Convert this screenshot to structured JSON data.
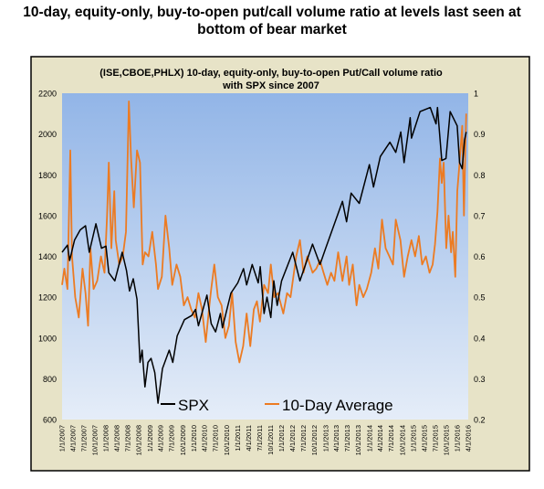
{
  "headline": "10-day, equity-only, buy-to-open put/call volume ratio at levels last seen at bottom of bear market",
  "colors": {
    "outer_panel": "#e7e3c7",
    "spx_line": "#000000",
    "ratio_line": "#ec7b22",
    "plot_top": "#92b5e7",
    "plot_bottom": "#e5edf8"
  },
  "chart_data": {
    "type": "line",
    "title_line1": "(ISE,CBOE,PHLX) 10-day, equity-only, buy-to-open Put/Call volume ratio",
    "title_line2": "with SPX since 2007",
    "x_ticks": [
      "1/1/2007",
      "4/1/2007",
      "7/1/2007",
      "10/1/2007",
      "1/1/2008",
      "4/1/2008",
      "7/1/2008",
      "10/1/2008",
      "1/1/2009",
      "4/1/2009",
      "7/1/2009",
      "10/1/2009",
      "1/1/2010",
      "4/1/2010",
      "7/1/2010",
      "10/1/2010",
      "1/1/2011",
      "4/1/2011",
      "7/1/2011",
      "10/1/2011",
      "1/1/2012",
      "4/1/2012",
      "7/1/2012",
      "10/1/2012",
      "1/1/2013",
      "4/1/2013",
      "7/1/2013",
      "10/1/2013",
      "1/1/2014",
      "4/1/2014",
      "7/1/2014",
      "10/1/2014",
      "1/1/2015",
      "4/1/2015",
      "7/1/2015",
      "10/1/2015",
      "1/1/2016",
      "4/1/2016"
    ],
    "x_range": [
      "2007-01-01",
      "2016-04-01"
    ],
    "y_left": {
      "min": 600,
      "max": 2200,
      "ticks": [
        600,
        800,
        1000,
        1200,
        1400,
        1600,
        1800,
        2000,
        2200
      ]
    },
    "y_right": {
      "min": 0.2,
      "max": 1,
      "ticks": [
        "0.2",
        "0.3",
        "0.4",
        "0.5",
        "0.6",
        "0.7",
        "0.8",
        "0.9",
        "1"
      ]
    },
    "legend": {
      "placement": "bottom-center"
    },
    "series": [
      {
        "name": "SPX",
        "axis": "left",
        "points": [
          [
            "2007-01-01",
            1420
          ],
          [
            "2007-02-15",
            1455
          ],
          [
            "2007-03-05",
            1380
          ],
          [
            "2007-04-15",
            1480
          ],
          [
            "2007-06-01",
            1530
          ],
          [
            "2007-07-15",
            1550
          ],
          [
            "2007-08-15",
            1420
          ],
          [
            "2007-10-10",
            1560
          ],
          [
            "2007-11-25",
            1440
          ],
          [
            "2008-01-01",
            1450
          ],
          [
            "2008-01-25",
            1320
          ],
          [
            "2008-03-15",
            1280
          ],
          [
            "2008-05-15",
            1420
          ],
          [
            "2008-06-20",
            1330
          ],
          [
            "2008-07-15",
            1230
          ],
          [
            "2008-08-15",
            1290
          ],
          [
            "2008-09-15",
            1190
          ],
          [
            "2008-10-10",
            880
          ],
          [
            "2008-10-28",
            940
          ],
          [
            "2008-11-20",
            760
          ],
          [
            "2008-12-15",
            880
          ],
          [
            "2009-01-10",
            900
          ],
          [
            "2009-02-10",
            830
          ],
          [
            "2009-03-09",
            680
          ],
          [
            "2009-04-15",
            850
          ],
          [
            "2009-06-10",
            940
          ],
          [
            "2009-07-10",
            880
          ],
          [
            "2009-08-15",
            1010
          ],
          [
            "2009-10-15",
            1090
          ],
          [
            "2009-12-15",
            1110
          ],
          [
            "2010-01-15",
            1140
          ],
          [
            "2010-02-08",
            1060
          ],
          [
            "2010-04-20",
            1210
          ],
          [
            "2010-05-25",
            1070
          ],
          [
            "2010-07-01",
            1030
          ],
          [
            "2010-08-10",
            1120
          ],
          [
            "2010-08-27",
            1050
          ],
          [
            "2010-11-05",
            1220
          ],
          [
            "2011-01-01",
            1270
          ],
          [
            "2011-02-18",
            1340
          ],
          [
            "2011-03-16",
            1260
          ],
          [
            "2011-05-01",
            1360
          ],
          [
            "2011-06-20",
            1270
          ],
          [
            "2011-07-07",
            1350
          ],
          [
            "2011-08-08",
            1120
          ],
          [
            "2011-09-01",
            1200
          ],
          [
            "2011-10-03",
            1100
          ],
          [
            "2011-10-28",
            1280
          ],
          [
            "2011-11-25",
            1160
          ],
          [
            "2012-01-01",
            1280
          ],
          [
            "2012-04-02",
            1420
          ],
          [
            "2012-06-01",
            1280
          ],
          [
            "2012-09-14",
            1460
          ],
          [
            "2012-11-15",
            1360
          ],
          [
            "2013-01-01",
            1440
          ],
          [
            "2013-05-21",
            1670
          ],
          [
            "2013-06-24",
            1570
          ],
          [
            "2013-08-01",
            1710
          ],
          [
            "2013-10-08",
            1660
          ],
          [
            "2013-12-31",
            1850
          ],
          [
            "2014-02-03",
            1740
          ],
          [
            "2014-04-01",
            1890
          ],
          [
            "2014-06-20",
            1960
          ],
          [
            "2014-08-07",
            1910
          ],
          [
            "2014-09-18",
            2010
          ],
          [
            "2014-10-15",
            1860
          ],
          [
            "2014-12-05",
            2080
          ],
          [
            "2014-12-16",
            1980
          ],
          [
            "2015-02-25",
            2110
          ],
          [
            "2015-05-21",
            2130
          ],
          [
            "2015-07-08",
            2050
          ],
          [
            "2015-07-20",
            2130
          ],
          [
            "2015-08-25",
            1870
          ],
          [
            "2015-09-29",
            1880
          ],
          [
            "2015-11-03",
            2110
          ],
          [
            "2015-12-31",
            2040
          ],
          [
            "2016-01-20",
            1860
          ],
          [
            "2016-02-11",
            1830
          ],
          [
            "2016-03-01",
            1970
          ],
          [
            "2016-03-15",
            2010
          ]
        ]
      },
      {
        "name": "10-Day Average",
        "axis": "right",
        "points": [
          [
            "2007-01-01",
            0.53
          ],
          [
            "2007-01-20",
            0.57
          ],
          [
            "2007-02-15",
            0.52
          ],
          [
            "2007-03-10",
            0.86
          ],
          [
            "2007-03-25",
            0.6
          ],
          [
            "2007-04-20",
            0.5
          ],
          [
            "2007-05-20",
            0.45
          ],
          [
            "2007-06-20",
            0.57
          ],
          [
            "2007-07-15",
            0.51
          ],
          [
            "2007-08-05",
            0.43
          ],
          [
            "2007-08-25",
            0.62
          ],
          [
            "2007-09-20",
            0.52
          ],
          [
            "2007-10-20",
            0.54
          ],
          [
            "2007-11-20",
            0.6
          ],
          [
            "2007-12-20",
            0.56
          ],
          [
            "2008-01-10",
            0.7
          ],
          [
            "2008-01-25",
            0.83
          ],
          [
            "2008-02-15",
            0.62
          ],
          [
            "2008-03-10",
            0.76
          ],
          [
            "2008-03-22",
            0.64
          ],
          [
            "2008-04-20",
            0.58
          ],
          [
            "2008-05-20",
            0.6
          ],
          [
            "2008-06-15",
            0.66
          ],
          [
            "2008-07-10",
            0.98
          ],
          [
            "2008-07-28",
            0.84
          ],
          [
            "2008-08-20",
            0.72
          ],
          [
            "2008-09-15",
            0.86
          ],
          [
            "2008-10-10",
            0.83
          ],
          [
            "2008-11-01",
            0.58
          ],
          [
            "2008-11-20",
            0.61
          ],
          [
            "2008-12-20",
            0.6
          ],
          [
            "2009-01-20",
            0.66
          ],
          [
            "2009-02-20",
            0.58
          ],
          [
            "2009-03-09",
            0.52
          ],
          [
            "2009-04-10",
            0.55
          ],
          [
            "2009-05-10",
            0.7
          ],
          [
            "2009-06-10",
            0.62
          ],
          [
            "2009-07-05",
            0.53
          ],
          [
            "2009-08-10",
            0.58
          ],
          [
            "2009-09-10",
            0.55
          ],
          [
            "2009-10-10",
            0.48
          ],
          [
            "2009-11-10",
            0.5
          ],
          [
            "2009-12-10",
            0.47
          ],
          [
            "2010-01-10",
            0.45
          ],
          [
            "2010-02-08",
            0.51
          ],
          [
            "2010-03-10",
            0.47
          ],
          [
            "2010-04-10",
            0.39
          ],
          [
            "2010-05-10",
            0.48
          ],
          [
            "2010-05-25",
            0.52
          ],
          [
            "2010-06-20",
            0.58
          ],
          [
            "2010-07-20",
            0.5
          ],
          [
            "2010-08-20",
            0.48
          ],
          [
            "2010-09-20",
            0.4
          ],
          [
            "2010-10-20",
            0.43
          ],
          [
            "2010-11-15",
            0.51
          ],
          [
            "2010-12-15",
            0.39
          ],
          [
            "2011-01-15",
            0.34
          ],
          [
            "2011-02-15",
            0.38
          ],
          [
            "2011-03-16",
            0.46
          ],
          [
            "2011-04-15",
            0.38
          ],
          [
            "2011-05-15",
            0.47
          ],
          [
            "2011-06-10",
            0.49
          ],
          [
            "2011-07-05",
            0.44
          ],
          [
            "2011-08-08",
            0.53
          ],
          [
            "2011-09-10",
            0.51
          ],
          [
            "2011-10-03",
            0.58
          ],
          [
            "2011-11-01",
            0.5
          ],
          [
            "2011-12-01",
            0.51
          ],
          [
            "2012-01-15",
            0.46
          ],
          [
            "2012-02-15",
            0.51
          ],
          [
            "2012-03-15",
            0.5
          ],
          [
            "2012-05-01",
            0.6
          ],
          [
            "2012-06-01",
            0.64
          ],
          [
            "2012-07-01",
            0.56
          ],
          [
            "2012-08-01",
            0.6
          ],
          [
            "2012-09-15",
            0.56
          ],
          [
            "2012-10-15",
            0.57
          ],
          [
            "2012-11-15",
            0.59
          ],
          [
            "2012-12-15",
            0.56
          ],
          [
            "2013-01-15",
            0.53
          ],
          [
            "2013-02-15",
            0.56
          ],
          [
            "2013-03-15",
            0.54
          ],
          [
            "2013-04-15",
            0.61
          ],
          [
            "2013-05-21",
            0.54
          ],
          [
            "2013-06-24",
            0.6
          ],
          [
            "2013-07-15",
            0.53
          ],
          [
            "2013-08-15",
            0.58
          ],
          [
            "2013-09-15",
            0.48
          ],
          [
            "2013-10-08",
            0.53
          ],
          [
            "2013-11-10",
            0.5
          ],
          [
            "2013-12-10",
            0.52
          ],
          [
            "2014-01-15",
            0.56
          ],
          [
            "2014-02-15",
            0.62
          ],
          [
            "2014-03-15",
            0.57
          ],
          [
            "2014-04-15",
            0.69
          ],
          [
            "2014-05-15",
            0.62
          ],
          [
            "2014-06-15",
            0.6
          ],
          [
            "2014-07-15",
            0.58
          ],
          [
            "2014-08-07",
            0.69
          ],
          [
            "2014-09-15",
            0.64
          ],
          [
            "2014-10-15",
            0.55
          ],
          [
            "2014-11-15",
            0.6
          ],
          [
            "2014-12-16",
            0.64
          ],
          [
            "2015-01-15",
            0.6
          ],
          [
            "2015-02-15",
            0.65
          ],
          [
            "2015-03-15",
            0.58
          ],
          [
            "2015-04-15",
            0.6
          ],
          [
            "2015-05-15",
            0.56
          ],
          [
            "2015-06-10",
            0.58
          ],
          [
            "2015-06-30",
            0.63
          ],
          [
            "2015-07-20",
            0.71
          ],
          [
            "2015-08-10",
            0.84
          ],
          [
            "2015-08-25",
            0.78
          ],
          [
            "2015-09-10",
            0.83
          ],
          [
            "2015-10-01",
            0.62
          ],
          [
            "2015-10-20",
            0.7
          ],
          [
            "2015-11-10",
            0.61
          ],
          [
            "2015-11-25",
            0.66
          ],
          [
            "2015-12-15",
            0.55
          ],
          [
            "2016-01-01",
            0.76
          ],
          [
            "2016-01-20",
            0.83
          ],
          [
            "2016-02-11",
            0.92
          ],
          [
            "2016-02-25",
            0.7
          ],
          [
            "2016-03-05",
            0.82
          ],
          [
            "2016-03-15",
            0.95
          ]
        ]
      }
    ]
  }
}
